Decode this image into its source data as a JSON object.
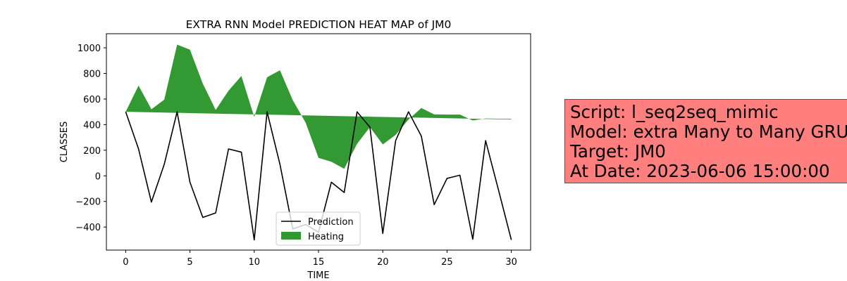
{
  "chart_data": {
    "type": "line",
    "title": "EXTRA RNN Model PREDICTION HEAT MAP of JM0",
    "xlabel": "TIME",
    "ylabel": "CLASSES",
    "xlim": [
      -1.5,
      31.5
    ],
    "ylim": [
      -580,
      1110
    ],
    "xticks": [
      0,
      5,
      10,
      15,
      20,
      25,
      30
    ],
    "yticks": [
      -400,
      -200,
      0,
      200,
      400,
      600,
      800,
      1000
    ],
    "legend_position": "lower center",
    "series": [
      {
        "name": "Prediction",
        "type": "line",
        "color": "#000000",
        "x": [
          0,
          1,
          2,
          3,
          4,
          5,
          6,
          7,
          8,
          9,
          10,
          11,
          12,
          13,
          14,
          15,
          16,
          17,
          18,
          19,
          20,
          21,
          22,
          23,
          24,
          25,
          26,
          27,
          28,
          29,
          30
        ],
        "y": [
          500,
          210,
          -205,
          90,
          500,
          -50,
          -325,
          -290,
          210,
          185,
          -500,
          500,
          90,
          -415,
          -380,
          -440,
          -50,
          -130,
          500,
          380,
          -450,
          275,
          500,
          310,
          -225,
          -20,
          5,
          -495,
          275,
          -110,
          -500
        ]
      },
      {
        "name": "Heating",
        "type": "fill_between",
        "color": "#008000",
        "x": [
          0,
          1,
          2,
          3,
          4,
          5,
          6,
          7,
          8,
          9,
          10,
          11,
          12,
          13,
          14,
          15,
          16,
          17,
          18,
          19,
          20,
          21,
          22,
          23,
          24,
          25,
          26,
          27,
          28,
          29,
          30
        ],
        "upper": [
          500,
          705,
          520,
          595,
          1025,
          985,
          720,
          515,
          665,
          780,
          460,
          770,
          825,
          590,
          415,
          140,
          110,
          55,
          250,
          380,
          245,
          320,
          440,
          530,
          480,
          478,
          478,
          432,
          448,
          446,
          445
        ],
        "baseline": [
          500,
          498,
          496,
          494,
          492,
          490,
          488,
          486,
          484,
          482,
          480,
          478,
          476,
          474,
          472,
          470,
          468,
          466,
          464,
          462,
          460,
          458,
          456,
          454,
          452,
          450,
          448,
          446,
          444,
          442,
          440
        ]
      }
    ]
  },
  "info_box": {
    "lines": [
      "Script: l_seq2seq_mimic",
      "Model: extra Many to Many GRU",
      "Target: JM0",
      "At Date: 2023-06-06 15:00:00"
    ],
    "background": "#ff7f7f"
  }
}
